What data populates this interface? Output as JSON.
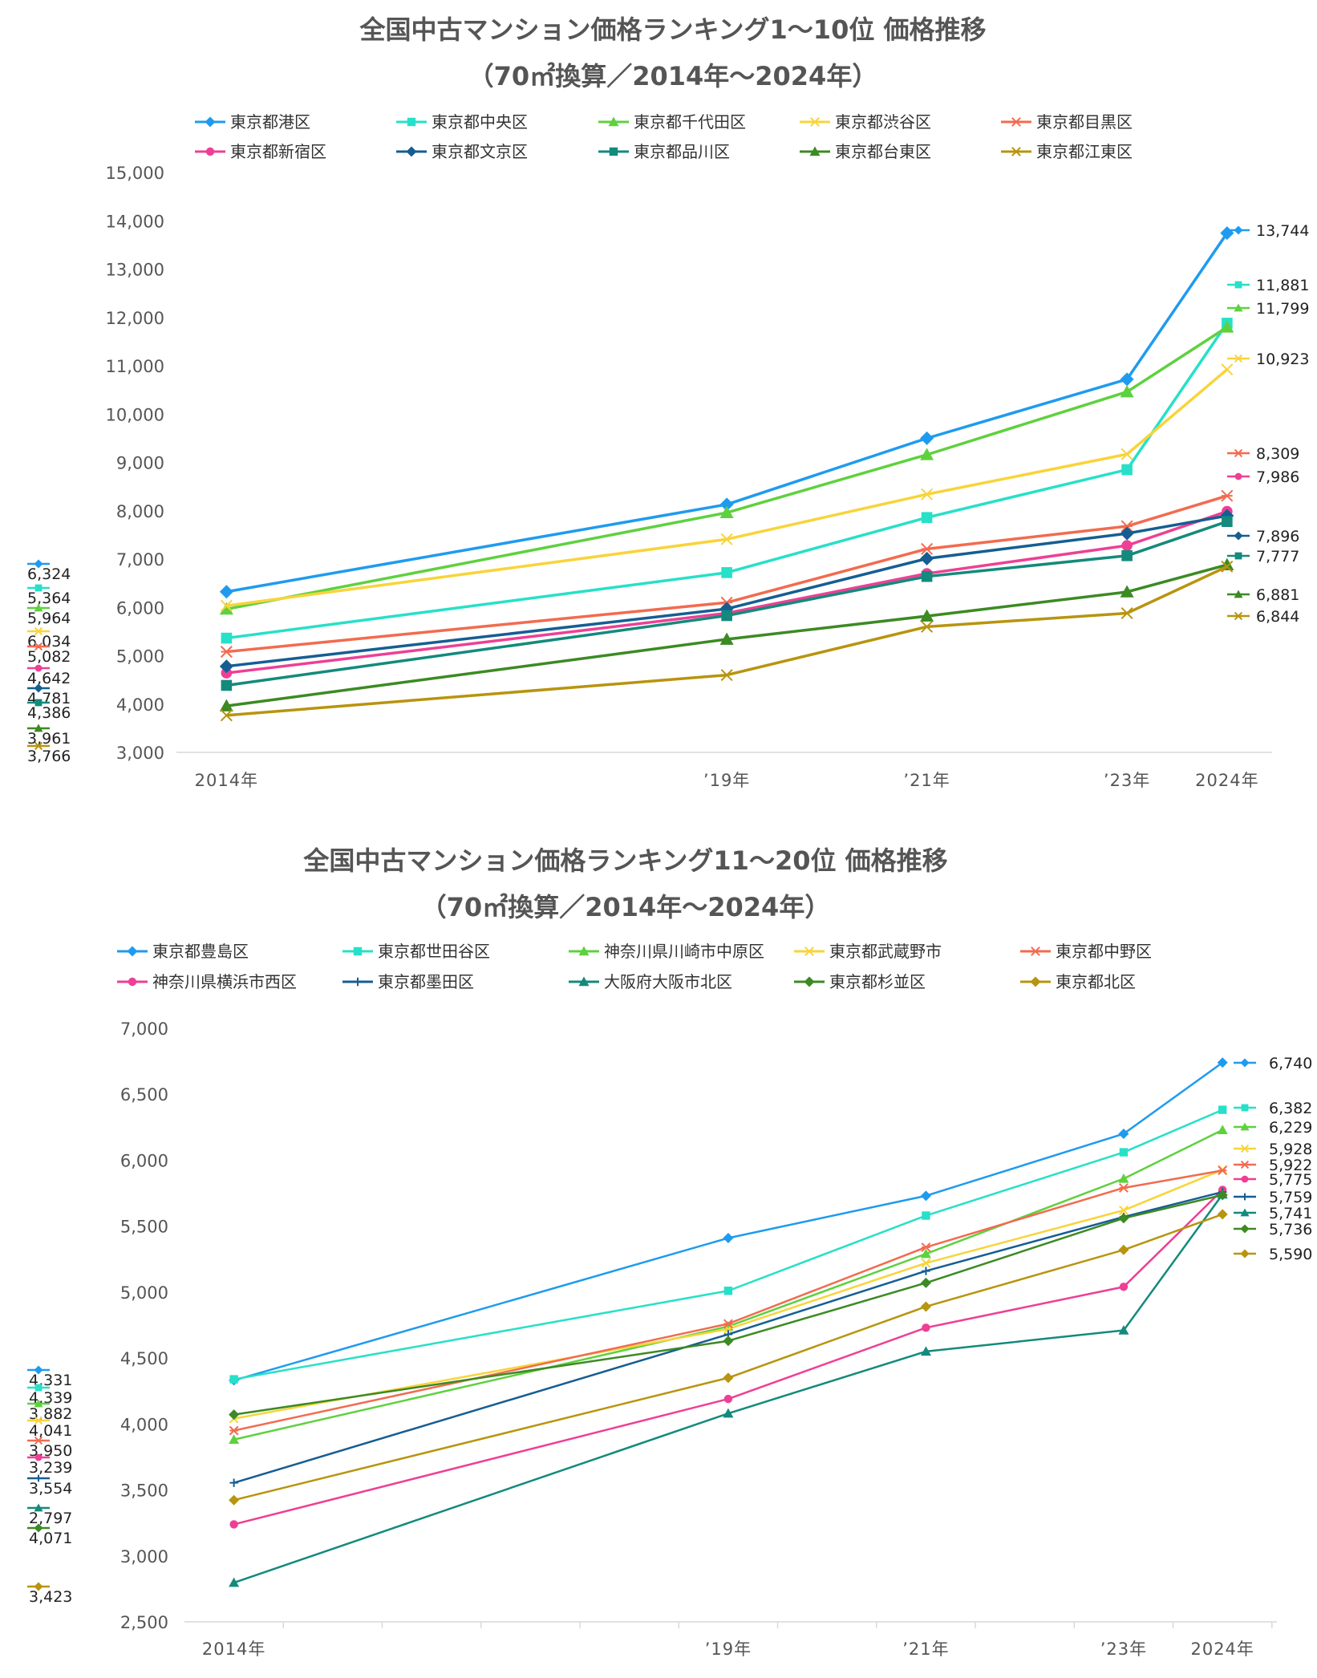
{
  "chart_data": [
    {
      "type": "line",
      "title": "全国中古マンション価格ランキング1～10位 価格推移",
      "subtitle": "（70㎡換算／2014年～2024年）",
      "categories": [
        "2014年",
        "’19年",
        "’21年",
        "’23年",
        "2024年"
      ],
      "x": [
        2014,
        2019,
        2021,
        2023,
        2024
      ],
      "xlim": [
        2013.5,
        2024.45
      ],
      "ylim": [
        3000,
        15000
      ],
      "yticks": [
        3000,
        4000,
        5000,
        6000,
        7000,
        8000,
        9000,
        10000,
        11000,
        12000,
        13000,
        14000,
        15000
      ],
      "ytick_labels": [
        "3,000",
        "4,000",
        "5,000",
        "6,000",
        "7,000",
        "8,000",
        "9,000",
        "10,000",
        "11,000",
        "12,000",
        "13,000",
        "14,000",
        "15,000"
      ],
      "legend_position": "top",
      "series": [
        {
          "name": "東京都港区",
          "color": "#1E9BEF",
          "marker": "diamond",
          "values": [
            6324,
            8130,
            9500,
            10720,
            13744
          ],
          "start_label": "6,324",
          "end_label": "13,744"
        },
        {
          "name": "東京都中央区",
          "color": "#27E0C8",
          "marker": "square",
          "values": [
            5364,
            6720,
            7860,
            8850,
            11881
          ],
          "start_label": "5,364",
          "end_label": "11,881"
        },
        {
          "name": "東京都千代田区",
          "color": "#5ED13E",
          "marker": "triangle",
          "values": [
            5964,
            7960,
            9160,
            10460,
            11799
          ],
          "start_label": "5,964",
          "end_label": "11,799"
        },
        {
          "name": "東京都渋谷区",
          "color": "#F8D43A",
          "marker": "x",
          "values": [
            6034,
            7410,
            8340,
            9170,
            10923
          ],
          "start_label": "6,034",
          "end_label": "10,923"
        },
        {
          "name": "東京都目黒区",
          "color": "#F26B4F",
          "marker": "star",
          "values": [
            5082,
            6100,
            7210,
            7680,
            8309
          ],
          "start_label": "5,082",
          "end_label": "8,309"
        },
        {
          "name": "東京都新宿区",
          "color": "#EE3F95",
          "marker": "circle",
          "values": [
            4642,
            5880,
            6700,
            7280,
            7986
          ],
          "start_label": "4,642",
          "end_label": "7,986"
        },
        {
          "name": "東京都文京区",
          "color": "#155E92",
          "marker": "diamond",
          "values": [
            4781,
            5970,
            7010,
            7530,
            7896
          ],
          "start_label": "4,781",
          "end_label": "7,896"
        },
        {
          "name": "東京都品川区",
          "color": "#138A7C",
          "marker": "square",
          "values": [
            4386,
            5830,
            6640,
            7070,
            7777
          ],
          "start_label": "4,386",
          "end_label": "7,777"
        },
        {
          "name": "東京都台東区",
          "color": "#3C8A23",
          "marker": "triangle",
          "values": [
            3961,
            5340,
            5820,
            6320,
            6881
          ],
          "start_label": "3,961",
          "end_label": "6,881"
        },
        {
          "name": "東京都江東区",
          "color": "#B8940F",
          "marker": "x",
          "values": [
            3766,
            4600,
            5600,
            5880,
            6844
          ],
          "start_label": "3,766",
          "end_label": "6,844"
        }
      ]
    },
    {
      "type": "line",
      "title": "全国中古マンション価格ランキング11～20位 価格推移",
      "subtitle": "（70㎡換算／2014年～2024年）",
      "categories": [
        "2014年",
        "’19年",
        "’21年",
        "’23年",
        "2024年"
      ],
      "x": [
        2014,
        2019,
        2021,
        2023,
        2024
      ],
      "xlim": [
        2013.5,
        2024.55
      ],
      "ylim": [
        2500,
        7000
      ],
      "yticks": [
        2500,
        3000,
        3500,
        4000,
        4500,
        5000,
        5500,
        6000,
        6500,
        7000
      ],
      "ytick_labels": [
        "2,500",
        "3,000",
        "3,500",
        "4,000",
        "4,500",
        "5,000",
        "5,500",
        "6,000",
        "6,500",
        "7,000"
      ],
      "legend_position": "top",
      "series": [
        {
          "name": "東京都豊島区",
          "color": "#1E9BEF",
          "marker": "diamond",
          "values": [
            4331,
            5410,
            5730,
            6200,
            6740
          ],
          "start_label": "4,331",
          "end_label": "6,740"
        },
        {
          "name": "東京都世田谷区",
          "color": "#27E0C8",
          "marker": "square",
          "values": [
            4339,
            5010,
            5580,
            6060,
            6382
          ],
          "start_label": "4,339",
          "end_label": "6,382"
        },
        {
          "name": "神奈川県川崎市中原区",
          "color": "#5ED13E",
          "marker": "triangle",
          "values": [
            3882,
            4740,
            5290,
            5860,
            6229
          ],
          "start_label": "3,882",
          "end_label": "6,229"
        },
        {
          "name": "東京都武蔵野市",
          "color": "#F8D43A",
          "marker": "x",
          "values": [
            4041,
            4720,
            5220,
            5620,
            5928
          ],
          "start_label": "4,041",
          "end_label": "5,928"
        },
        {
          "name": "東京都中野区",
          "color": "#F26B4F",
          "marker": "star",
          "values": [
            3950,
            4760,
            5340,
            5790,
            5922
          ],
          "start_label": "3,950",
          "end_label": "5,922"
        },
        {
          "name": "神奈川県横浜市西区",
          "color": "#EE3F95",
          "marker": "circle",
          "values": [
            3239,
            4190,
            4730,
            5040,
            5775
          ],
          "start_label": "3,239",
          "end_label": "5,775"
        },
        {
          "name": "東京都墨田区",
          "color": "#155E92",
          "marker": "plus",
          "values": [
            3554,
            4680,
            5160,
            5570,
            5759
          ],
          "start_label": "3,554",
          "end_label": "5,759"
        },
        {
          "name": "大阪府大阪市北区",
          "color": "#138A7C",
          "marker": "triangle",
          "values": [
            2797,
            4080,
            4550,
            4710,
            5741
          ],
          "start_label": "2,797",
          "end_label": "5,741"
        },
        {
          "name": "東京都杉並区",
          "color": "#3C8A23",
          "marker": "diamond",
          "values": [
            4071,
            4630,
            5070,
            5560,
            5736
          ],
          "start_label": "4,071",
          "end_label": "5,736"
        },
        {
          "name": "東京都北区",
          "color": "#B8940F",
          "marker": "diamond",
          "values": [
            3423,
            4350,
            4890,
            5320,
            5590
          ],
          "start_label": "3,423",
          "end_label": "5,590"
        }
      ]
    }
  ]
}
